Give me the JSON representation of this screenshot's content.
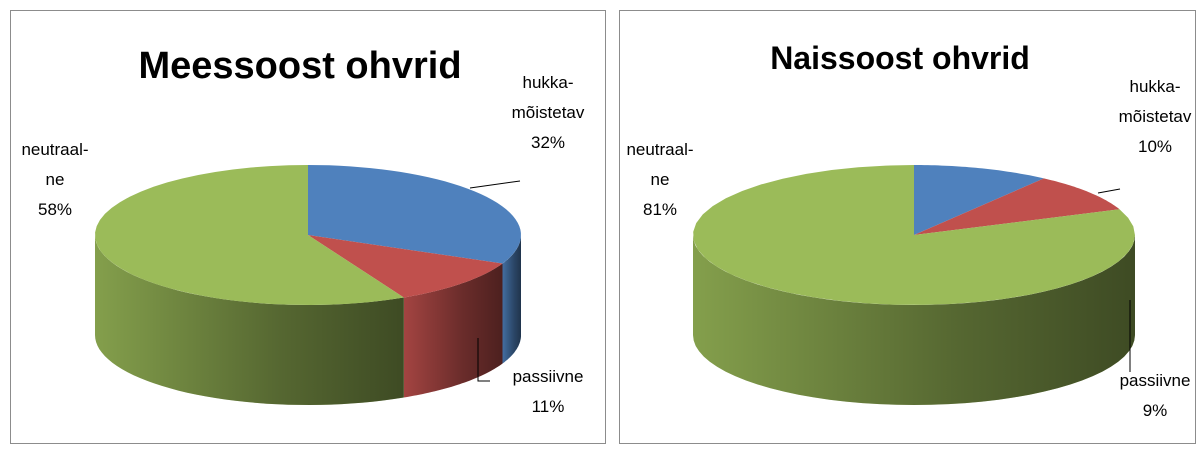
{
  "chart_data": [
    {
      "type": "pie3d",
      "title": "Meessoost ohvrid",
      "categories": [
        "hukka-mõistetav",
        "passiivne",
        "neutraal-ne"
      ],
      "values": [
        32,
        11,
        58
      ],
      "value_labels": [
        "32%",
        "11%",
        "58%"
      ],
      "colors": [
        "#4f81bd",
        "#c0504d",
        "#9bbb59"
      ]
    },
    {
      "type": "pie3d",
      "title": "Naissoost ohvrid",
      "categories": [
        "hukka-mõistetav",
        "passiivne",
        "neutraal-ne"
      ],
      "values": [
        10,
        9,
        81
      ],
      "value_labels": [
        "10%",
        "9%",
        "81%"
      ],
      "colors": [
        "#4f81bd",
        "#c0504d",
        "#9bbb59"
      ]
    }
  ]
}
